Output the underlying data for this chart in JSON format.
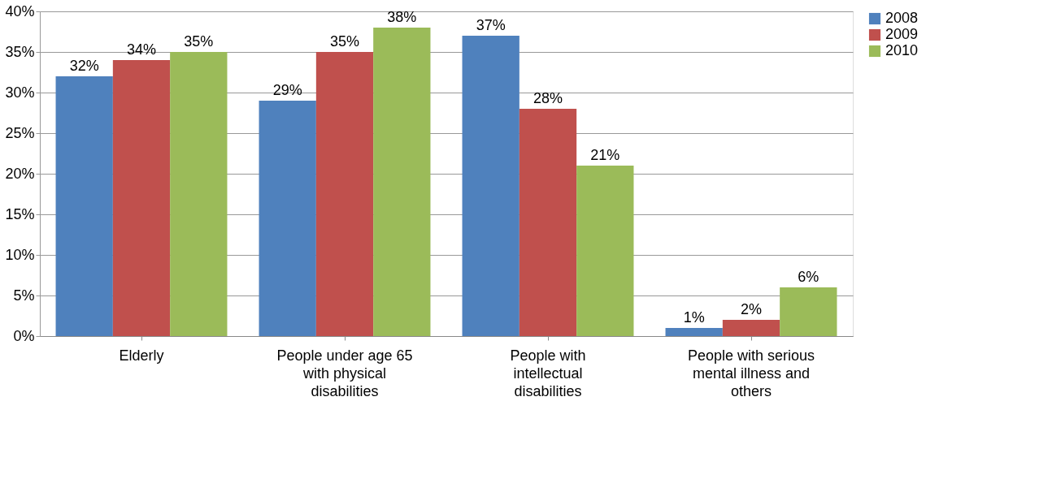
{
  "chart_data": {
    "type": "bar",
    "categories": [
      "Elderly",
      "People under age 65 with physical disabilities",
      "People with intellectual disabilities",
      "People with serious mental illness and others"
    ],
    "series": [
      {
        "name": "2008",
        "color": "#4f81bd",
        "values": [
          32,
          29,
          37,
          1
        ],
        "value_labels": [
          "32%",
          "29%",
          "37%",
          "1%"
        ]
      },
      {
        "name": "2009",
        "color": "#c0504d",
        "values": [
          34,
          35,
          28,
          2
        ],
        "value_labels": [
          "34%",
          "35%",
          "28%",
          "2%"
        ]
      },
      {
        "name": "2010",
        "color": "#9bbb59",
        "values": [
          35,
          38,
          21,
          6
        ],
        "value_labels": [
          "35%",
          "38%",
          "21%",
          "6%"
        ]
      }
    ],
    "ylim": [
      0,
      40
    ],
    "yticks": [
      {
        "value": 0,
        "label": "0%"
      },
      {
        "value": 5,
        "label": "5%"
      },
      {
        "value": 10,
        "label": "10%"
      },
      {
        "value": 15,
        "label": "15%"
      },
      {
        "value": 20,
        "label": "20%"
      },
      {
        "value": 25,
        "label": "25%"
      },
      {
        "value": 30,
        "label": "30%"
      },
      {
        "value": 35,
        "label": "35%"
      },
      {
        "value": 40,
        "label": "40%"
      }
    ],
    "grid": "y",
    "legend": "right"
  }
}
